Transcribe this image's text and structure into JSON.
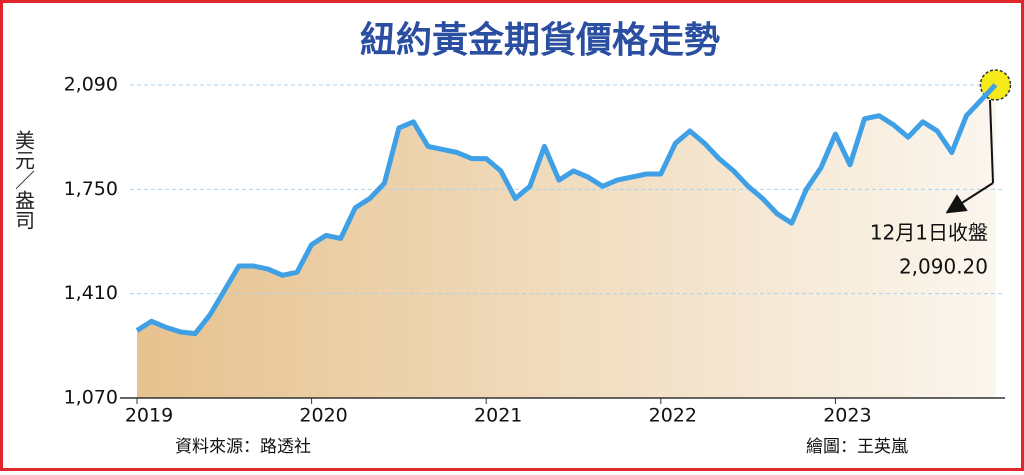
{
  "chart_data": {
    "type": "line",
    "title": "紐約黃金期貨價格走勢",
    "y_label": "美元／盎司",
    "source": "資料來源：路透社",
    "credit": "繪圖：王英嵐",
    "annotation": "12月1日收盤",
    "categories": [
      "2019",
      null,
      null,
      null,
      null,
      null,
      null,
      null,
      null,
      null,
      null,
      null,
      "2020",
      null,
      null,
      null,
      null,
      null,
      null,
      null,
      null,
      null,
      null,
      null,
      "2021",
      null,
      null,
      null,
      null,
      null,
      null,
      null,
      null,
      null,
      null,
      null,
      "2022",
      null,
      null,
      null,
      null,
      null,
      null,
      null,
      null,
      null,
      null,
      null,
      "2023",
      null,
      null,
      null,
      null,
      null,
      null,
      null,
      null,
      null,
      null,
      null
    ],
    "series": [
      {
        "color": "#3fa0e6",
        "values": [
          1290,
          1320,
          1300,
          1285,
          1280,
          1340,
          1420,
          1500,
          1500,
          1490,
          1470,
          1480,
          1570,
          1600,
          1590,
          1690,
          1720,
          1770,
          1950,
          1970,
          1890,
          1880,
          1870,
          1850,
          1850,
          1810,
          1720,
          1760,
          1890,
          1780,
          1810,
          1790,
          1760,
          1780,
          1790,
          1800,
          1800,
          1900,
          1940,
          1900,
          1850,
          1810,
          1760,
          1720,
          1670,
          1640,
          1750,
          1820,
          1930,
          1830,
          1980,
          1990,
          1960,
          1920,
          1970,
          1940,
          1870,
          1990,
          2040,
          2090.2
        ],
        "value_labels": [
          null,
          null,
          null,
          null,
          null,
          null,
          null,
          null,
          null,
          null,
          null,
          null,
          null,
          null,
          null,
          null,
          null,
          null,
          null,
          null,
          null,
          null,
          null,
          null,
          null,
          null,
          null,
          null,
          null,
          null,
          null,
          null,
          null,
          null,
          null,
          null,
          null,
          null,
          null,
          null,
          null,
          null,
          null,
          null,
          null,
          null,
          null,
          null,
          null,
          null,
          null,
          null,
          null,
          null,
          null,
          null,
          null,
          null,
          null,
          "2,090.20"
        ]
      }
    ],
    "ylim": [
      1070,
      2090
    ],
    "yticks": [
      {
        "value": 1070,
        "label": "1,070"
      },
      {
        "value": 1410,
        "label": "1,410"
      },
      {
        "value": 1750,
        "label": "1,750"
      },
      {
        "value": 2090,
        "label": "2,090"
      }
    ],
    "grid": true
  }
}
